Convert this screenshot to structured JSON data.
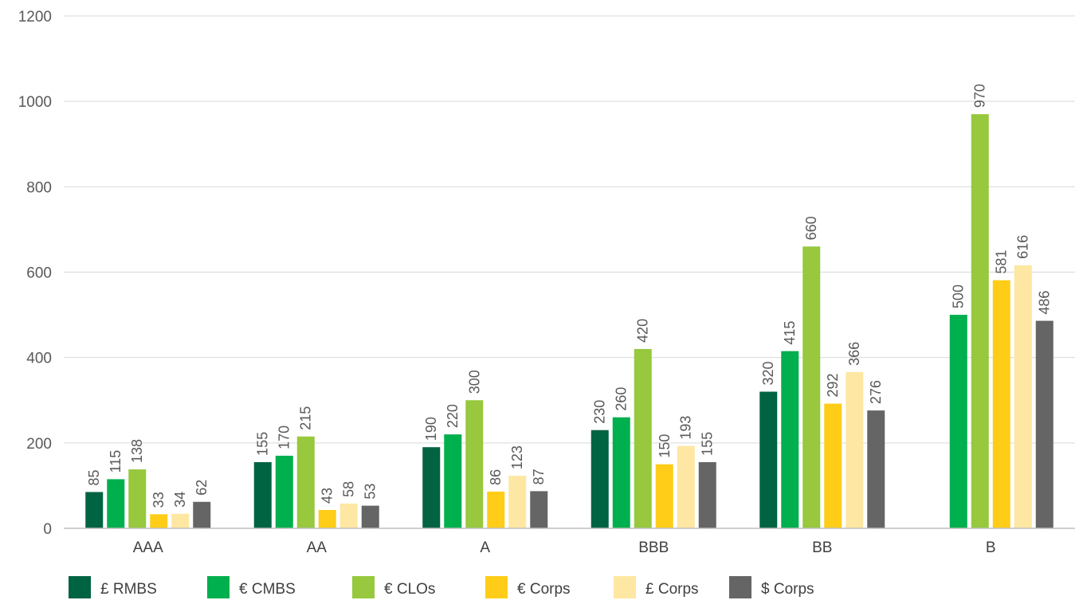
{
  "chart_data": {
    "type": "bar",
    "title": "",
    "xlabel": "",
    "ylabel": "",
    "ylim": [
      0,
      1200
    ],
    "yticks": [
      0,
      200,
      400,
      600,
      800,
      1000,
      1200
    ],
    "grid": true,
    "legend_position": "bottom",
    "categories": [
      "AAA",
      "AA",
      "A",
      "BBB",
      "BB",
      "B"
    ],
    "series": [
      {
        "name": "£ RMBS",
        "color": "#006341",
        "values": [
          85,
          155,
          190,
          230,
          320,
          null
        ]
      },
      {
        "name": "€ CMBS",
        "color": "#00AF4D",
        "values": [
          115,
          170,
          220,
          260,
          415,
          500
        ]
      },
      {
        "name": "€ CLOs",
        "color": "#97C83D",
        "values": [
          138,
          215,
          300,
          420,
          660,
          970
        ]
      },
      {
        "name": "€ Corps",
        "color": "#FFCD18",
        "values": [
          33,
          43,
          86,
          150,
          292,
          581
        ]
      },
      {
        "name": "£ Corps",
        "color": "#FDE7A2",
        "values": [
          34,
          58,
          123,
          193,
          366,
          616
        ]
      },
      {
        "name": "$ Corps",
        "color": "#656565",
        "values": [
          62,
          53,
          87,
          155,
          276,
          486
        ]
      }
    ]
  }
}
